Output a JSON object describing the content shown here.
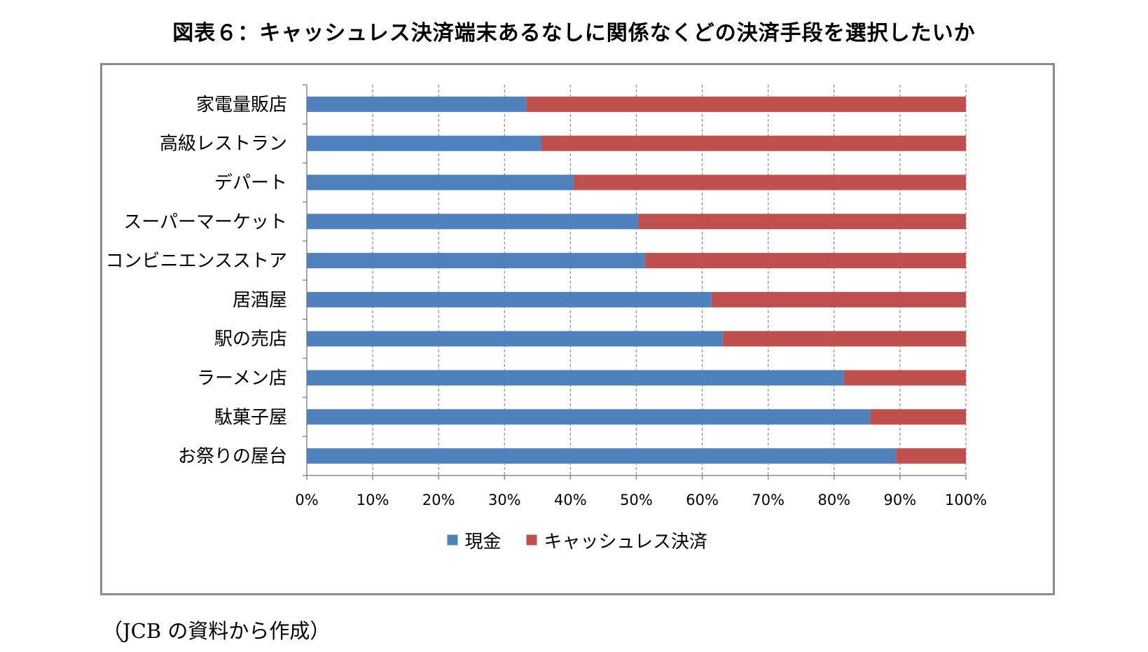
{
  "title": "図表６：キャッシュレス決済端末あるなしに関係なくどの決済手段を選択したいか",
  "source": "（JCB の資料から作成）",
  "colors": {
    "cash": "#4f81bd",
    "cashless": "#c0504d",
    "grid": "#8c8c8c",
    "axis": "#8c8c8c"
  },
  "chart_data": {
    "type": "bar",
    "orientation": "horizontal",
    "stacked": "percent",
    "categories": [
      "家電量販店",
      "高級レストラン",
      "デパート",
      "スーパーマーケット",
      "コンビニエンスストア",
      "居酒屋",
      "駅の売店",
      "ラーメン店",
      "駄菓子屋",
      "お祭りの屋台"
    ],
    "series": [
      {
        "name": "現金",
        "values": [
          33.3,
          35.6,
          40.5,
          50.3,
          51.3,
          61.4,
          63.1,
          81.5,
          85.5,
          89.4
        ]
      },
      {
        "name": "キャッシュレス決済",
        "values": [
          66.7,
          64.4,
          59.5,
          49.7,
          48.7,
          38.6,
          36.9,
          18.5,
          14.5,
          10.6
        ]
      }
    ],
    "xlim": [
      0,
      100
    ],
    "xticks": [
      "0%",
      "10%",
      "20%",
      "30%",
      "40%",
      "50%",
      "60%",
      "70%",
      "80%",
      "90%",
      "100%"
    ],
    "grid": "vertical-dashed",
    "legend_position": "bottom"
  }
}
